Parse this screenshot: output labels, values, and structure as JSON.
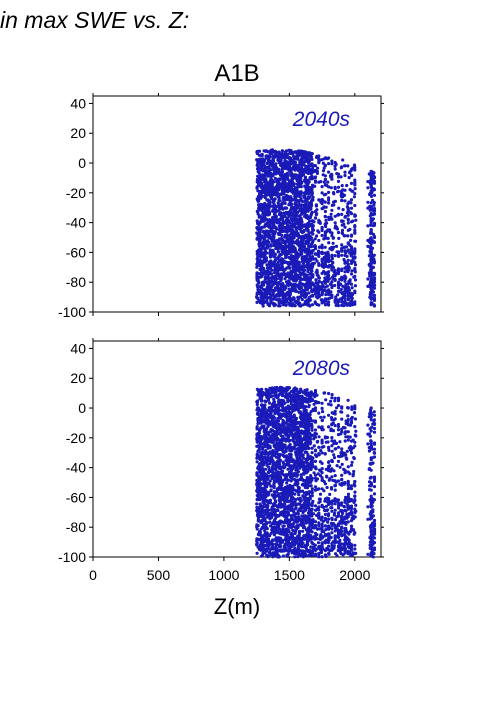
{
  "figure": {
    "heading": "in max SWE vs. Z:",
    "title": "A1B",
    "xlabel": "Z(m)"
  },
  "colors": {
    "points": "#1a1ab8",
    "axis": "#000000"
  },
  "chart_data": [
    {
      "type": "scatter",
      "label": "2040s",
      "xlim": [
        0,
        2200
      ],
      "ylim": [
        -100,
        45
      ],
      "xticks": [
        0,
        500,
        1000,
        1500,
        2000
      ],
      "yticks": [
        -100,
        -80,
        -60,
        -40,
        -20,
        0,
        20,
        40
      ],
      "x_range_of_points": [
        1250,
        2150
      ],
      "y_range_of_points": [
        -96,
        9
      ]
    },
    {
      "type": "scatter",
      "label": "2080s",
      "xlim": [
        0,
        2200
      ],
      "ylim": [
        -100,
        45
      ],
      "xticks": [
        0,
        500,
        1000,
        1500,
        2000
      ],
      "yticks": [
        -100,
        -80,
        -60,
        -40,
        -20,
        0,
        20,
        40
      ],
      "x_range_of_points": [
        1250,
        2150
      ],
      "y_range_of_points": [
        -100,
        14
      ]
    }
  ]
}
